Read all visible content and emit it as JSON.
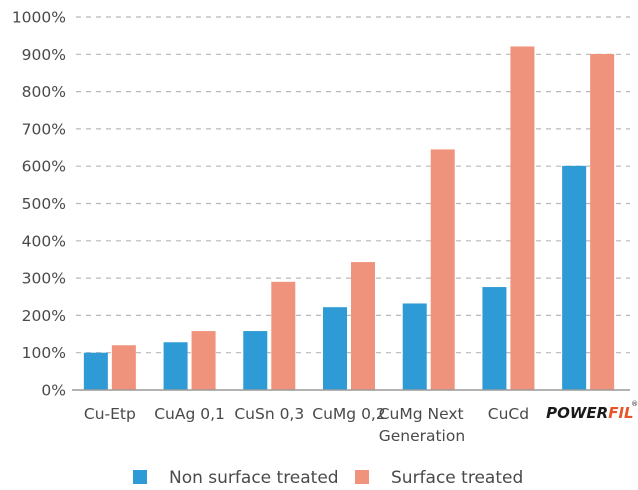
{
  "chart_data": {
    "type": "bar",
    "title": "",
    "xlabel": "",
    "ylabel": "",
    "ylim": [
      0,
      1000
    ],
    "yticks": [
      0,
      100,
      200,
      300,
      400,
      500,
      600,
      700,
      800,
      900,
      1000
    ],
    "ytick_labels": [
      "0%",
      "100%",
      "200%",
      "300%",
      "400%",
      "500%",
      "600%",
      "700%",
      "800%",
      "900%",
      "1000%"
    ],
    "grid": true,
    "legend_position": "bottom-center",
    "categories": [
      "Cu-Etp",
      "CuAg 0,1",
      "CuSn 0,3",
      "CuMg 0,2",
      "CuMg Next Generation",
      "CuCd",
      "POWERFIL"
    ],
    "category_label_lines": [
      [
        "Cu-Etp"
      ],
      [
        "CuAg 0,1"
      ],
      [
        "CuSn 0,3"
      ],
      [
        "CuMg 0,2"
      ],
      [
        "CuMg Next",
        "Generation"
      ],
      [
        "CuCd"
      ],
      []
    ],
    "brand_logo": {
      "power": "POWER",
      "fil": "FIL",
      "mark": "®"
    },
    "series": [
      {
        "name": "Non surface treated",
        "color": "#2e9ad6",
        "values": [
          100,
          128,
          158,
          222,
          232,
          276,
          601
        ]
      },
      {
        "name": "Surface treated",
        "color": "#f0937c",
        "values": [
          120,
          158,
          290,
          343,
          645,
          921,
          901
        ]
      }
    ]
  }
}
